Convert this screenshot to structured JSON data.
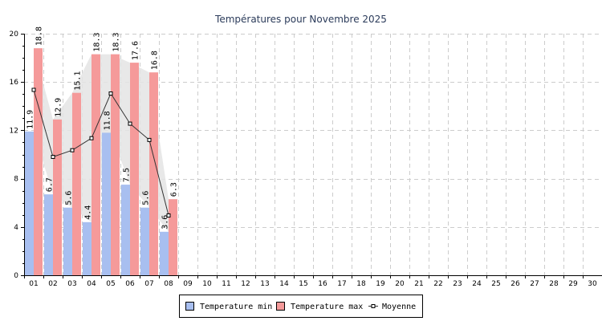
{
  "chart_data": {
    "type": "bar",
    "title": "Températures pour Novembre 2025",
    "xlabel": "",
    "ylabel": "",
    "ylim": [
      0,
      20
    ],
    "yticks": [
      0,
      4,
      8,
      12,
      16,
      20
    ],
    "grid": true,
    "legend_position": "bottom-center",
    "categories": [
      "01",
      "02",
      "03",
      "04",
      "05",
      "06",
      "07",
      "08",
      "09",
      "10",
      "11",
      "12",
      "13",
      "14",
      "15",
      "16",
      "17",
      "18",
      "19",
      "20",
      "21",
      "22",
      "23",
      "24",
      "25",
      "26",
      "27",
      "28",
      "29",
      "30"
    ],
    "series": [
      {
        "name": "Temperature min",
        "type": "bar",
        "color": "#a8bff0",
        "values": [
          11.9,
          6.7,
          5.6,
          4.4,
          11.8,
          7.5,
          5.6,
          3.6,
          null,
          null,
          null,
          null,
          null,
          null,
          null,
          null,
          null,
          null,
          null,
          null,
          null,
          null,
          null,
          null,
          null,
          null,
          null,
          null,
          null,
          null
        ],
        "labels": [
          "11.9",
          "6.7",
          "5.6",
          "4.4",
          "11.8",
          "7.5",
          "5.6",
          "3.6"
        ]
      },
      {
        "name": "Temperature max",
        "type": "bar",
        "color": "#f59a9a",
        "values": [
          18.8,
          12.9,
          15.1,
          18.3,
          18.3,
          17.6,
          16.8,
          6.3,
          null,
          null,
          null,
          null,
          null,
          null,
          null,
          null,
          null,
          null,
          null,
          null,
          null,
          null,
          null,
          null,
          null,
          null,
          null,
          null,
          null,
          null
        ],
        "labels": [
          "18.8",
          "12.9",
          "15.1",
          "18.3",
          "18.3",
          "17.6",
          "16.8",
          "6.3"
        ]
      },
      {
        "name": "Moyenne",
        "type": "line",
        "color": "#333333",
        "values": [
          15.35,
          9.8,
          10.35,
          11.35,
          15.05,
          12.55,
          11.2,
          4.95,
          null,
          null,
          null,
          null,
          null,
          null,
          null,
          null,
          null,
          null,
          null,
          null,
          null,
          null,
          null,
          null,
          null,
          null,
          null,
          null,
          null,
          null
        ]
      }
    ]
  }
}
